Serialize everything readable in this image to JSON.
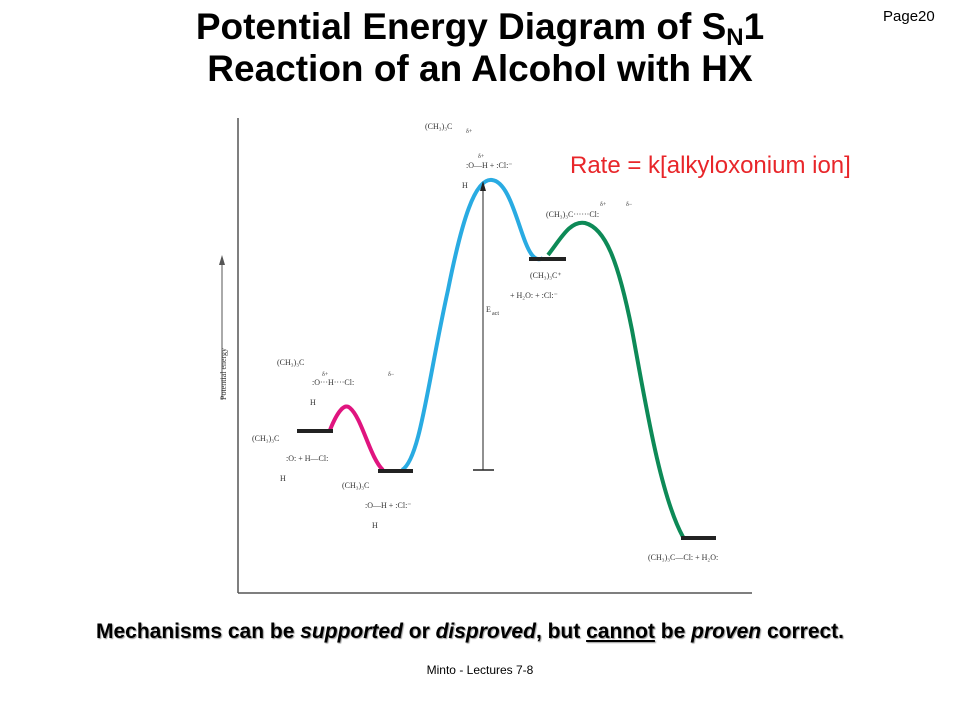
{
  "page": {
    "label": "Page",
    "number": "20"
  },
  "title": {
    "line1_main": "Potential Energy Diagram of S",
    "line1_sub": "N",
    "line1_end": "1",
    "line2": "Reaction of an Alcohol with HX"
  },
  "rate": "Rate = k[alkyloxonium ion]",
  "footer": {
    "p1": "Mechanisms can be ",
    "supported": "supported",
    "p2": " or ",
    "disproved": "disproved",
    "p3": ", but ",
    "cannot": "cannot",
    "p4": " be ",
    "proven": "proven",
    "p5": " correct."
  },
  "credit": "Minto - Lectures 7-8",
  "diagram": {
    "y_axis_label": "Potential energy",
    "eact_label": "E",
    "eact_sub": "act",
    "reactant": [
      "(CH₃)₃C",
      ":O:  +  H—Cl:",
      "H"
    ],
    "ts1": [
      "(CH₃)₃C",
      "δ+",
      ":O···H····Cl:",
      "δ−",
      "H"
    ],
    "int1": [
      "(CH₃)₃C",
      ":O—H  +  :Cl:⁻",
      "H"
    ],
    "ts2": [
      "(CH₃)₃C",
      "δ+",
      "δ+",
      ":O—H  +  :Cl:⁻",
      "H"
    ],
    "int2": [
      "(CH₃)₃C⁺",
      "+  H₂O:  +  :Cl:⁻"
    ],
    "ts3": [
      "δ+",
      "δ−",
      "(CH₃)₃C······Cl:"
    ],
    "product": [
      "(CH₃)₃C—Cl:  +  H₂O:"
    ],
    "colors": {
      "step1": "#e0147f",
      "step2": "#29abe2",
      "step3": "#0d8a57",
      "rate_text": "#e8262a"
    }
  }
}
